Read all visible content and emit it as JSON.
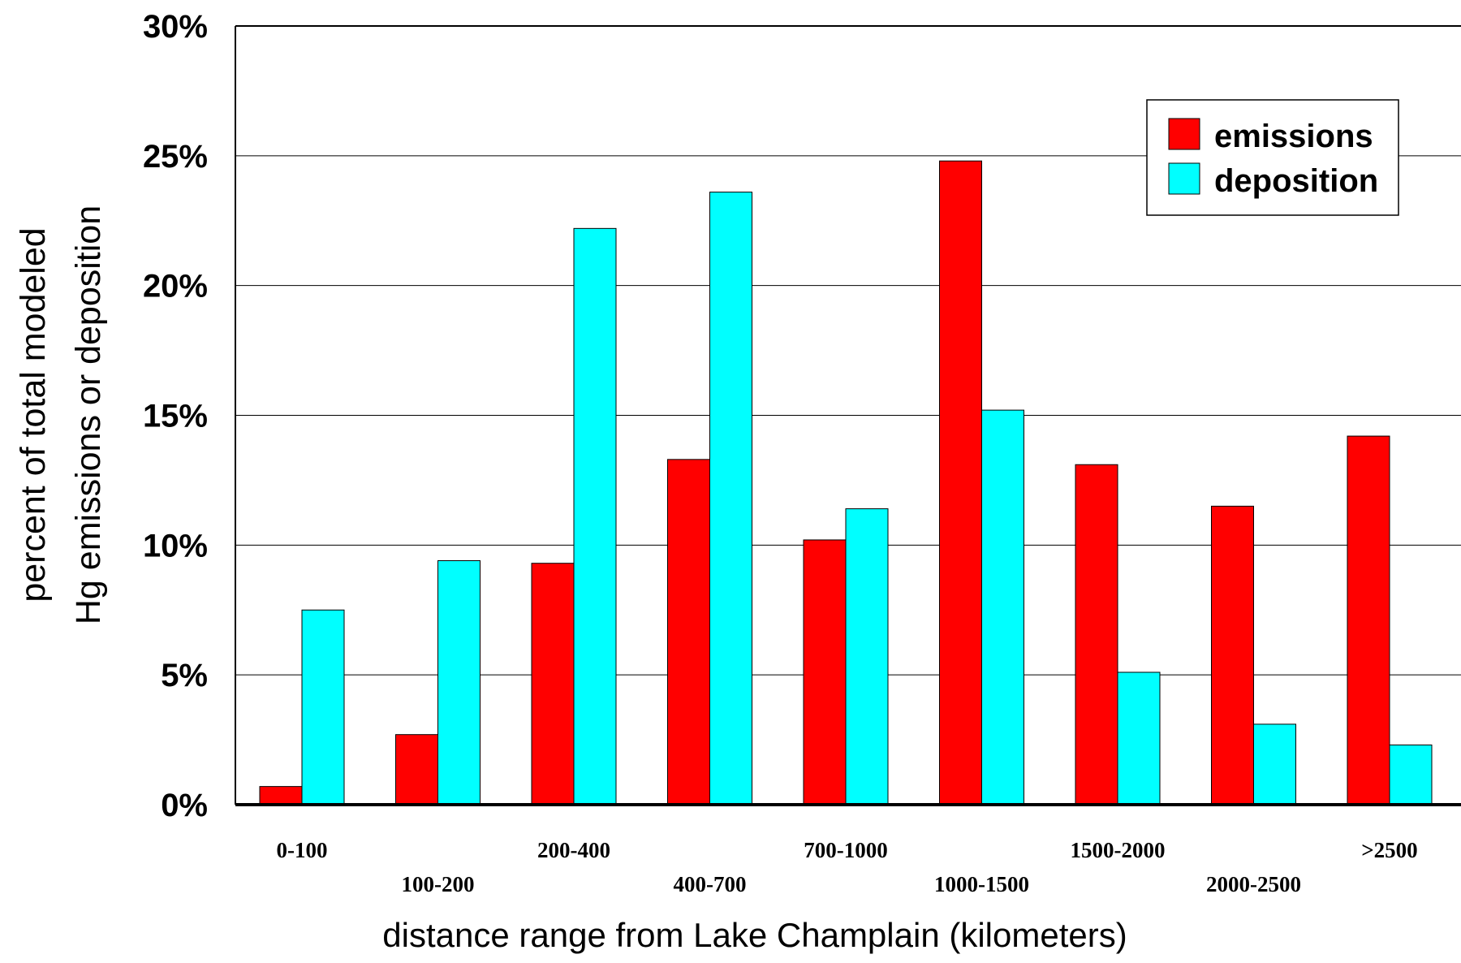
{
  "chart_data": {
    "type": "bar",
    "categories": [
      "0-100",
      "100-200",
      "200-400",
      "400-700",
      "700-1000",
      "1000-1500",
      "1500-2000",
      "2000-2500",
      ">2500"
    ],
    "series": [
      {
        "name": "emissions",
        "color": "#ff0000",
        "values": [
          0.7,
          2.7,
          9.3,
          13.3,
          10.2,
          24.8,
          13.1,
          11.5,
          14.2
        ]
      },
      {
        "name": "deposition",
        "color": "#00ffff",
        "values": [
          7.5,
          9.4,
          22.2,
          23.6,
          11.4,
          15.2,
          5.1,
          3.1,
          2.3
        ]
      }
    ],
    "ylim": [
      0,
      30
    ],
    "yticks": [
      "0%",
      "5%",
      "10%",
      "15%",
      "20%",
      "25%",
      "30%"
    ],
    "ylabel_line1": "percent of total modeled",
    "ylabel_line2": "Hg emissions or deposition",
    "xlabel": "distance range from Lake Champlain (kilometers)",
    "grid": true,
    "legend_position": "top-right"
  }
}
